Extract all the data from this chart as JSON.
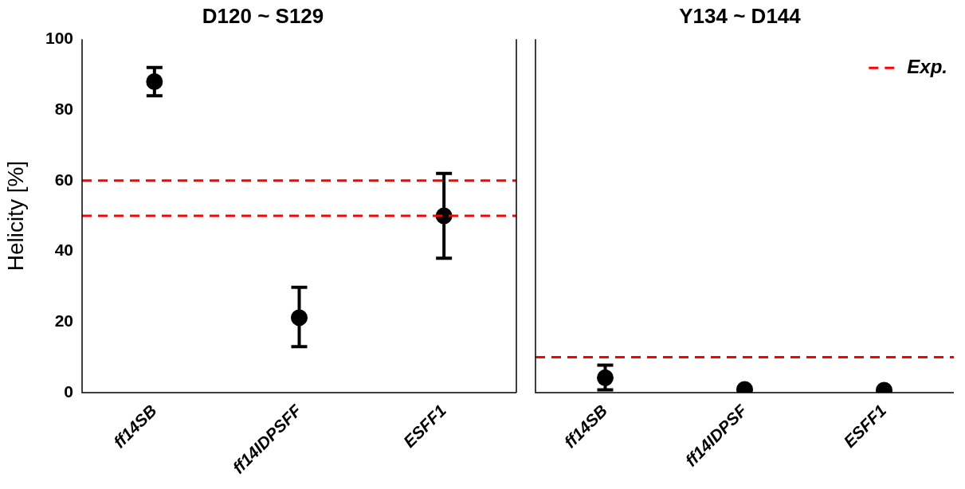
{
  "chart_data": [
    {
      "type": "scatter",
      "title": "D120 ~ S129",
      "ylabel": "Helicity [%]",
      "categories": [
        "ff14SB",
        "ff14IDPSFF",
        "ESFF1"
      ],
      "series": [
        {
          "color": "#000000",
          "values": [
            88,
            21.2,
            50
          ],
          "errors": [
            [
              84,
              92
            ],
            [
              13,
              29.8
            ],
            [
              38,
              62
            ]
          ]
        }
      ],
      "ylim": [
        0,
        100
      ],
      "yticks": [
        0,
        20,
        40,
        60,
        80,
        100
      ],
      "marker": "circle",
      "ref_lines": [
        {
          "axis": "y",
          "value": 60,
          "color": "#ff0000",
          "line_style": "dashed"
        },
        {
          "axis": "y",
          "value": 50,
          "color": "#ff0000",
          "line_style": "dashed"
        }
      ]
    },
    {
      "type": "scatter",
      "title": "Y134 ~ D144",
      "categories": [
        "ff14SB",
        "ff14IDPSF",
        "ESFF1"
      ],
      "series": [
        {
          "color": "#000000",
          "values": [
            4.2,
            0.9,
            0.7
          ],
          "errors": [
            [
              0.8,
              7.8
            ],
            null,
            null
          ]
        }
      ],
      "ylim": [
        0,
        100
      ],
      "yticks": [
        0,
        20,
        40,
        60,
        80,
        100
      ],
      "tick_labels": "x",
      "marker": "circle",
      "legend": "top right",
      "ref_lines": [
        {
          "axis": "y",
          "value": 10,
          "label": "Exp.",
          "color": "#ff0000",
          "line_style": "dashed"
        }
      ]
    }
  ]
}
